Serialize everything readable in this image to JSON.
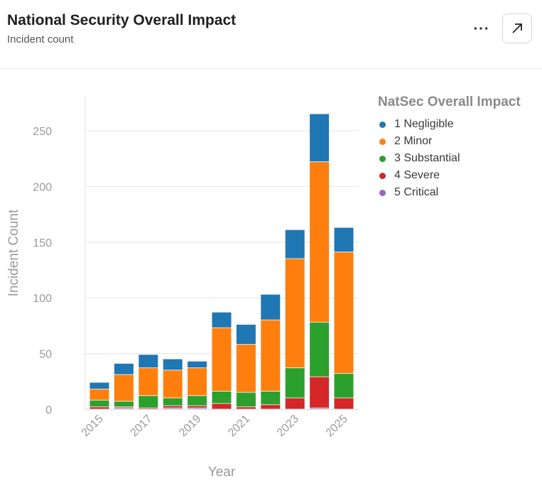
{
  "header": {
    "title": "National Security Overall Impact",
    "subtitle": "Incident count",
    "more_label": "···"
  },
  "icons": {
    "more": "more-dots-icon",
    "expand": "expand-arrow-icon"
  },
  "chart_data": {
    "type": "bar",
    "stacked": true,
    "xlabel": "Year",
    "ylabel": "Incident Count",
    "ylim": [
      0,
      280
    ],
    "yticks": [
      0,
      50,
      100,
      150,
      200,
      250
    ],
    "grid": true,
    "legend_title": "NatSec Overall Impact",
    "legend_position": "right",
    "categories": [
      "2015",
      "2016",
      "2017",
      "2018",
      "2019",
      "2020",
      "2021",
      "2022",
      "2023",
      "2024",
      "2025"
    ],
    "xtick_labels": [
      "2015",
      "2017",
      "2019",
      "2021",
      "2023",
      "2025"
    ],
    "series": [
      {
        "name": "5 Critical",
        "color": "#9467bd",
        "values": [
          0,
          1,
          0,
          1,
          1,
          0,
          0,
          0,
          0,
          1,
          0
        ]
      },
      {
        "name": "4 Severe",
        "color": "#d62728",
        "values": [
          2,
          1,
          1,
          2,
          2,
          5,
          2,
          4,
          10,
          28,
          10
        ]
      },
      {
        "name": "3 Substantial",
        "color": "#2ca02c",
        "values": [
          6,
          5,
          11,
          7,
          9,
          11,
          13,
          12,
          27,
          49,
          22
        ]
      },
      {
        "name": "2 Minor",
        "color": "#ff7f0e",
        "values": [
          10,
          24,
          25,
          25,
          25,
          57,
          43,
          64,
          98,
          144,
          109
        ]
      },
      {
        "name": "1 Negligible",
        "color": "#1f77b4",
        "values": [
          6,
          10,
          12,
          10,
          6,
          14,
          18,
          23,
          26,
          43,
          22
        ]
      }
    ]
  }
}
